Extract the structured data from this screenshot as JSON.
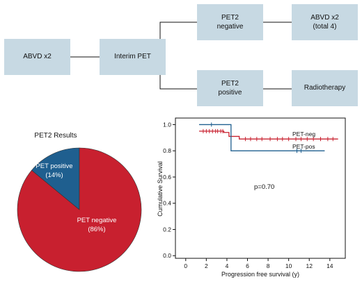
{
  "flowchart": {
    "box_abvd2": "ABVD  x2",
    "box_interim": "Interim PET",
    "box_pet2_negative": [
      "PET2",
      "negative"
    ],
    "box_pet2_positive": [
      "PET2",
      "positive"
    ],
    "box_abvd4": [
      "ABVD x2",
      "(total  4)"
    ],
    "box_radiotherapy": "Radiotherapy"
  },
  "chart_data": [
    {
      "type": "pie",
      "title": "PET2 Results",
      "slices": [
        {
          "label": "PET positive",
          "percent_label": "(14%)",
          "value": 14,
          "color": "#1f5f8f"
        },
        {
          "label": "PET negative",
          "percent_label": "(86%)",
          "value": 86,
          "color": "#c8202f"
        }
      ]
    },
    {
      "type": "line",
      "subtype": "kaplan-meier",
      "xlabel": "Progression free survival (y)",
      "ylabel": "Cumulative Survival",
      "xlim": [
        -1,
        15.5
      ],
      "ylim": [
        -0.02,
        1.05
      ],
      "xticks": [
        0,
        2,
        4,
        6,
        8,
        10,
        12,
        14
      ],
      "yticks": [
        0.0,
        0.2,
        0.4,
        0.6,
        0.8,
        1.0
      ],
      "annotation": "p=0.70",
      "series": [
        {
          "name": "PET-neg",
          "color": "#c8202f",
          "steps": [
            [
              1.3,
              0.95
            ],
            [
              3.7,
              0.94
            ],
            [
              4.2,
              0.91
            ],
            [
              5.2,
              0.89
            ],
            [
              14.8,
              0.89
            ]
          ],
          "censored": [
            1.7,
            2.0,
            2.3,
            2.6,
            2.9,
            3.1,
            3.4,
            3.6,
            5.8,
            6.3,
            6.9,
            7.4,
            8.2,
            8.9,
            9.4,
            10.0,
            10.7,
            11.2,
            11.8,
            12.4,
            13.1,
            13.8,
            14.3
          ]
        },
        {
          "name": "PET-pos",
          "color": "#1f5f8f",
          "steps": [
            [
              1.3,
              1.0
            ],
            [
              4.4,
              1.0
            ],
            [
              4.4,
              0.8
            ],
            [
              13.5,
              0.8
            ]
          ],
          "censored": [
            2.5,
            10.8,
            11.2
          ]
        }
      ]
    }
  ]
}
